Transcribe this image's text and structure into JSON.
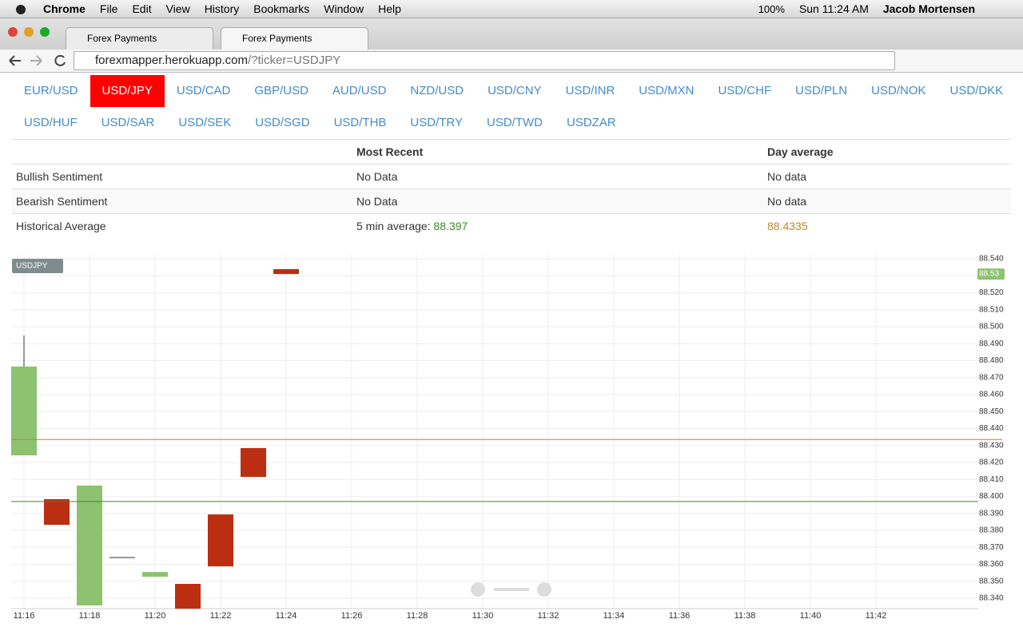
{
  "menu_bar": {
    "app": "Chrome",
    "menus": [
      "File",
      "Edit",
      "View",
      "History",
      "Bookmarks",
      "Window",
      "Help"
    ],
    "battery": "100%",
    "clock": "Sun 11:24 AM",
    "user": "Jacob Mortensen"
  },
  "tabs": [
    "Forex Payments",
    "Forex Payments"
  ],
  "address_bar": {
    "host": "forexmapper.herokuapp.com",
    "query": "/?ticker=USDJPY"
  },
  "nav": {
    "active": "USD/JPY",
    "rows": [
      [
        "EUR/USD",
        "USD/JPY",
        "USD/CAD",
        "GBP/USD",
        "AUD/USD",
        "NZD/USD",
        "USD/CNY",
        "USD/INR",
        "USD/MXN",
        "USD/CHF",
        "USD/PLN",
        "USD/NOK",
        "USD/DKK"
      ],
      [
        "USD/HUF",
        "USD/SAR",
        "USD/SEK",
        "USD/SGD",
        "USD/THB",
        "USD/TRY",
        "USD/TWD",
        "USDZAR"
      ]
    ]
  },
  "table": {
    "header": {
      "most_recent": "Most Recent",
      "day_average": "Day average"
    },
    "rows": [
      {
        "label": "Bullish Sentiment",
        "most_recent": "No Data",
        "day_average": "No data"
      },
      {
        "label": "Bearish Sentiment",
        "most_recent": "No Data",
        "day_average": "No data"
      },
      {
        "label": "Historical Average",
        "most_recent_prefix": "5 min average:",
        "most_recent_value": 88.397,
        "day_average": 88.4335
      }
    ]
  },
  "chart_data": {
    "type": "candlestick",
    "series_label": "USDJPY",
    "x": [
      "11:16",
      "11:17",
      "11:18",
      "11:19",
      "11:20",
      "11:21",
      "11:22",
      "11:23",
      "11:24"
    ],
    "open": [
      88.4242,
      88.3984,
      88.3358,
      88.364,
      88.3527,
      88.3485,
      88.3894,
      88.4285,
      88.5339
    ],
    "high": [
      88.4948,
      88.3984,
      88.4064,
      88.364,
      88.3555,
      88.3485,
      88.3894,
      88.4285,
      88.5339
    ],
    "low": [
      88.4242,
      88.3833,
      88.3358,
      88.364,
      88.3527,
      88.3339,
      88.3588,
      88.4115,
      88.531
    ],
    "close": [
      88.4765,
      88.3833,
      88.4064,
      88.364,
      88.3555,
      88.3339,
      88.3588,
      88.4115,
      88.531
    ],
    "up_color": "#8dc26f",
    "down_color": "#bb2e12",
    "ylim": [
      88.3339,
      88.5428
    ],
    "yticks": [
      {
        "value": 88.34,
        "label": "88.340"
      },
      {
        "value": 88.35,
        "label": "88.350"
      },
      {
        "value": 88.36,
        "label": "88.360"
      },
      {
        "value": 88.37,
        "label": "88.370"
      },
      {
        "value": 88.38,
        "label": "88.380"
      },
      {
        "value": 88.39,
        "label": "88.390"
      },
      {
        "value": 88.4,
        "label": "88.400"
      },
      {
        "value": 88.41,
        "label": "88.410"
      },
      {
        "value": 88.42,
        "label": "88.420"
      },
      {
        "value": 88.43,
        "label": "88.430"
      },
      {
        "value": 88.44,
        "label": "88.440"
      },
      {
        "value": 88.45,
        "label": "88.450"
      },
      {
        "value": 88.46,
        "label": "88.460"
      },
      {
        "value": 88.47,
        "label": "88.470"
      },
      {
        "value": 88.48,
        "label": "88.480"
      },
      {
        "value": 88.49,
        "label": "88.490"
      },
      {
        "value": 88.5,
        "label": "88.500"
      },
      {
        "value": 88.51,
        "label": "88.510"
      },
      {
        "value": 88.52,
        "label": "88.520"
      },
      {
        "value": 88.53,
        "label": "88.530"
      },
      {
        "value": 88.54,
        "label": "88.540"
      }
    ],
    "xticks": [
      "11:16",
      "11:18",
      "11:20",
      "11:22",
      "11:24",
      "11:26",
      "11:28",
      "11:30",
      "11:32",
      "11:34",
      "11:36",
      "11:38",
      "11:40",
      "11:42"
    ],
    "grid": true,
    "last_price": {
      "value": 88.531,
      "label": "88.53"
    }
  }
}
